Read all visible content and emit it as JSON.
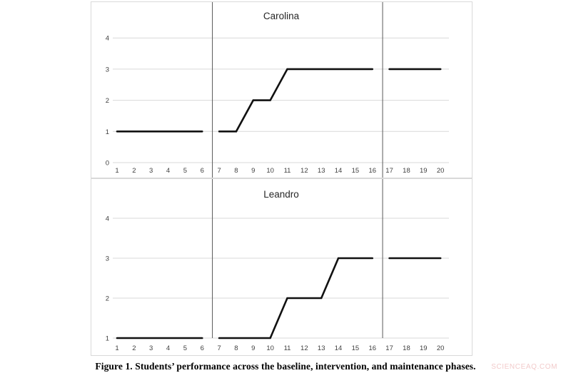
{
  "figure": {
    "caption": "Figure 1. Students’ performance across the baseline, intervention, and maintenance phases.",
    "watermark": "SCIENCEAQ.COM"
  },
  "colors": {
    "line": "#111111",
    "gridline": "#d9d9d9",
    "frame": "#d9d9d9",
    "phase_line": "#595959",
    "tick_label": "#404040",
    "title": "#262626",
    "watermark": "#f2cbcb"
  },
  "chart_data": [
    {
      "type": "line",
      "title": "Carolina",
      "xlim": [
        1,
        20
      ],
      "ylim": [
        0,
        4
      ],
      "x_ticks": [
        1,
        2,
        3,
        4,
        5,
        6,
        7,
        8,
        9,
        10,
        11,
        12,
        13,
        14,
        15,
        16,
        17,
        18,
        19,
        20
      ],
      "y_ticks": [
        0,
        1,
        2,
        3,
        4
      ],
      "grid": true,
      "legend": false,
      "line_color": "#111111",
      "phase_boundaries_x": [
        6.6,
        16.6
      ],
      "phases": [
        {
          "name": "baseline",
          "x": [
            1,
            2,
            3,
            4,
            5,
            6
          ],
          "values": [
            1,
            1,
            1,
            1,
            1,
            1
          ]
        },
        {
          "name": "intervention",
          "x": [
            7,
            8,
            9,
            10,
            11,
            12,
            13,
            14,
            15,
            16
          ],
          "values": [
            1,
            1,
            2,
            2,
            3,
            3,
            3,
            3,
            3,
            3
          ]
        },
        {
          "name": "maintenance",
          "x": [
            17,
            18,
            19,
            20
          ],
          "values": [
            3,
            3,
            3,
            3
          ]
        }
      ]
    },
    {
      "type": "line",
      "title": "Leandro",
      "xlim": [
        1,
        20
      ],
      "ylim": [
        1,
        4
      ],
      "x_ticks": [
        1,
        2,
        3,
        4,
        5,
        6,
        7,
        8,
        9,
        10,
        11,
        12,
        13,
        14,
        15,
        16,
        17,
        18,
        19,
        20
      ],
      "y_ticks": [
        1,
        2,
        3,
        4
      ],
      "grid": true,
      "legend": false,
      "line_color": "#111111",
      "phase_boundaries_x": [
        6.6,
        16.6
      ],
      "phases": [
        {
          "name": "baseline",
          "x": [
            1,
            2,
            3,
            4,
            5,
            6
          ],
          "values": [
            1,
            1,
            1,
            1,
            1,
            1
          ]
        },
        {
          "name": "intervention",
          "x": [
            7,
            8,
            9,
            10,
            11,
            12,
            13,
            14,
            15,
            16
          ],
          "values": [
            1,
            1,
            1,
            1,
            2,
            2,
            2,
            3,
            3,
            3
          ]
        },
        {
          "name": "maintenance",
          "x": [
            17,
            18,
            19,
            20
          ],
          "values": [
            3,
            3,
            3,
            3
          ]
        }
      ]
    }
  ]
}
